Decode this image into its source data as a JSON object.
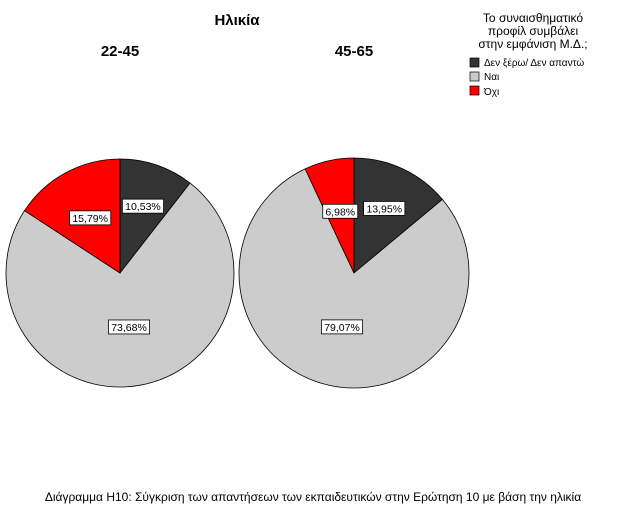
{
  "chart_data": {
    "type": "pie",
    "title": "Ηλικία",
    "legend": {
      "title_lines": [
        "Το συναισθηματικό",
        "προφίλ συμβάλει",
        "στην εμφάνιση Μ.Δ.;"
      ],
      "placement": "top-right",
      "entries": [
        {
          "label": "Δεν ξέρω/ Δεν απαντώ",
          "color": "#333333"
        },
        {
          "label": "Ναι",
          "color": "#cccccc"
        },
        {
          "label": "Όχι",
          "color": "#ff0000"
        }
      ]
    },
    "panels": [
      {
        "name": "22-45",
        "slices": [
          {
            "category": "Δεν ξέρω/ Δεν απαντώ",
            "value": 10.53,
            "label": "10,53%",
            "color": "#333333"
          },
          {
            "category": "Ναι",
            "value": 73.68,
            "label": "73,68%",
            "color": "#cccccc"
          },
          {
            "category": "Όχι",
            "value": 15.79,
            "label": "15,79%",
            "color": "#ff0000"
          }
        ]
      },
      {
        "name": "45-65",
        "slices": [
          {
            "category": "Δεν ξέρω/ Δεν απαντώ",
            "value": 13.95,
            "label": "13,95%",
            "color": "#333333"
          },
          {
            "category": "Ναι",
            "value": 79.07,
            "label": "79,07%",
            "color": "#cccccc"
          },
          {
            "category": "Όχι",
            "value": 6.98,
            "label": "6,98%",
            "color": "#ff0000"
          }
        ]
      }
    ]
  },
  "caption": "Διάγραμμα Η10: Σύγκριση των απαντήσεων των εκπαιδευτικών στην Ερώτηση 10 με βάση την ηλικία"
}
